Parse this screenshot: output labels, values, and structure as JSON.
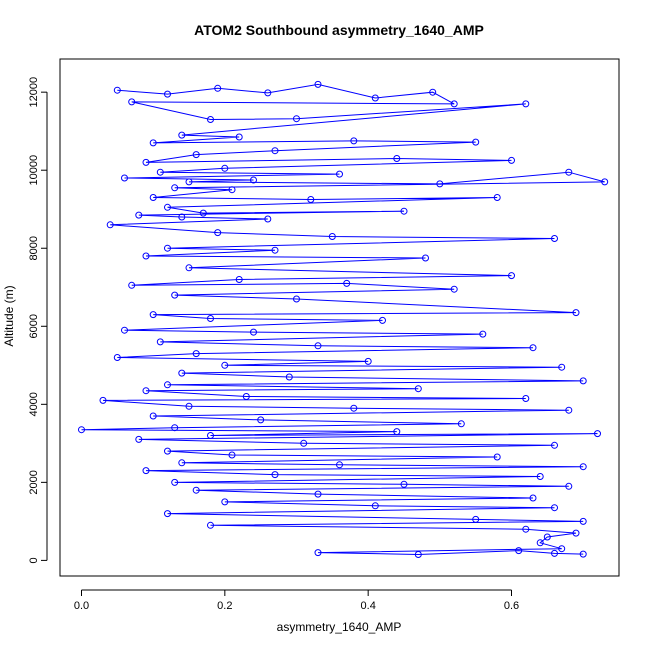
{
  "chart_data": {
    "type": "scatter",
    "title": "ATOM2 Southbound asymmetry_1640_AMP",
    "xlabel": "asymmetry_1640_AMP",
    "ylabel": "Altitude (m)",
    "xlim": [
      -0.03,
      0.75
    ],
    "ylim": [
      -400,
      12850
    ],
    "x_ticks": [
      0.0,
      0.2,
      0.4,
      0.6
    ],
    "x_tick_labels": [
      "0.0",
      "0.2",
      "0.4",
      "0.6"
    ],
    "y_ticks": [
      0,
      2000,
      4000,
      6000,
      8000,
      10000,
      12000
    ],
    "y_tick_labels": [
      "0",
      "2000",
      "4000",
      "6000",
      "8000",
      "10000",
      "12000"
    ],
    "series_color": "#0000ff",
    "marker": "open-circle",
    "connected": true,
    "grid": false,
    "legend": "none",
    "series": [
      {
        "x": [
          0.05,
          0.12,
          0.19,
          0.26,
          0.33,
          0.41,
          0.49,
          0.52,
          0.07,
          0.18,
          0.3,
          0.62,
          0.14,
          0.22,
          0.1,
          0.38,
          0.55,
          0.27,
          0.16,
          0.09,
          0.44,
          0.6,
          0.2,
          0.11,
          0.36,
          0.06,
          0.24,
          0.15,
          0.5,
          0.68,
          0.73,
          0.13,
          0.21,
          0.1,
          0.32,
          0.58,
          0.12,
          0.17,
          0.45,
          0.08,
          0.14,
          0.26,
          0.04,
          0.19,
          0.35,
          0.66,
          0.12,
          0.27,
          0.09,
          0.48,
          0.15,
          0.6,
          0.22,
          0.07,
          0.37,
          0.52,
          0.13,
          0.3,
          0.69,
          0.1,
          0.18,
          0.42,
          0.06,
          0.24,
          0.56,
          0.11,
          0.33,
          0.63,
          0.16,
          0.05,
          0.4,
          0.2,
          0.67,
          0.14,
          0.29,
          0.7,
          0.12,
          0.47,
          0.09,
          0.23,
          0.62,
          0.03,
          0.15,
          0.38,
          0.68,
          0.1,
          0.25,
          0.53,
          0.13,
          0.0,
          0.44,
          0.18,
          0.72,
          0.08,
          0.31,
          0.66,
          0.12,
          0.21,
          0.58,
          0.14,
          0.36,
          0.7,
          0.09,
          0.27,
          0.64,
          0.13,
          0.45,
          0.68,
          0.16,
          0.33,
          0.63,
          0.2,
          0.41,
          0.66,
          0.12,
          0.55,
          0.7,
          0.18,
          0.62,
          0.69,
          0.65,
          0.64,
          0.67,
          0.33,
          0.47,
          0.61,
          0.66,
          0.7
        ],
        "y": [
          12050,
          11950,
          12100,
          11980,
          12200,
          11850,
          12000,
          11700,
          11750,
          11300,
          11320,
          11700,
          10900,
          10850,
          10700,
          10750,
          10720,
          10500,
          10400,
          10200,
          10300,
          10250,
          10050,
          9950,
          9900,
          9800,
          9750,
          9700,
          9650,
          9950,
          9700,
          9550,
          9500,
          9300,
          9250,
          9300,
          9050,
          8900,
          8950,
          8850,
          8800,
          8750,
          8600,
          8400,
          8300,
          8250,
          8000,
          7950,
          7800,
          7750,
          7500,
          7300,
          7200,
          7050,
          7100,
          6950,
          6800,
          6700,
          6350,
          6300,
          6200,
          6150,
          5900,
          5850,
          5800,
          5600,
          5500,
          5450,
          5300,
          5200,
          5100,
          5000,
          4950,
          4800,
          4700,
          4600,
          4500,
          4400,
          4350,
          4200,
          4150,
          4100,
          3950,
          3900,
          3850,
          3700,
          3600,
          3500,
          3400,
          3350,
          3300,
          3200,
          3250,
          3100,
          3000,
          2950,
          2800,
          2700,
          2650,
          2500,
          2450,
          2400,
          2300,
          2200,
          2150,
          2000,
          1950,
          1900,
          1800,
          1700,
          1600,
          1500,
          1400,
          1350,
          1200,
          1050,
          1000,
          900,
          800,
          700,
          600,
          450,
          300,
          200,
          150,
          250,
          180,
          160
        ]
      }
    ]
  }
}
